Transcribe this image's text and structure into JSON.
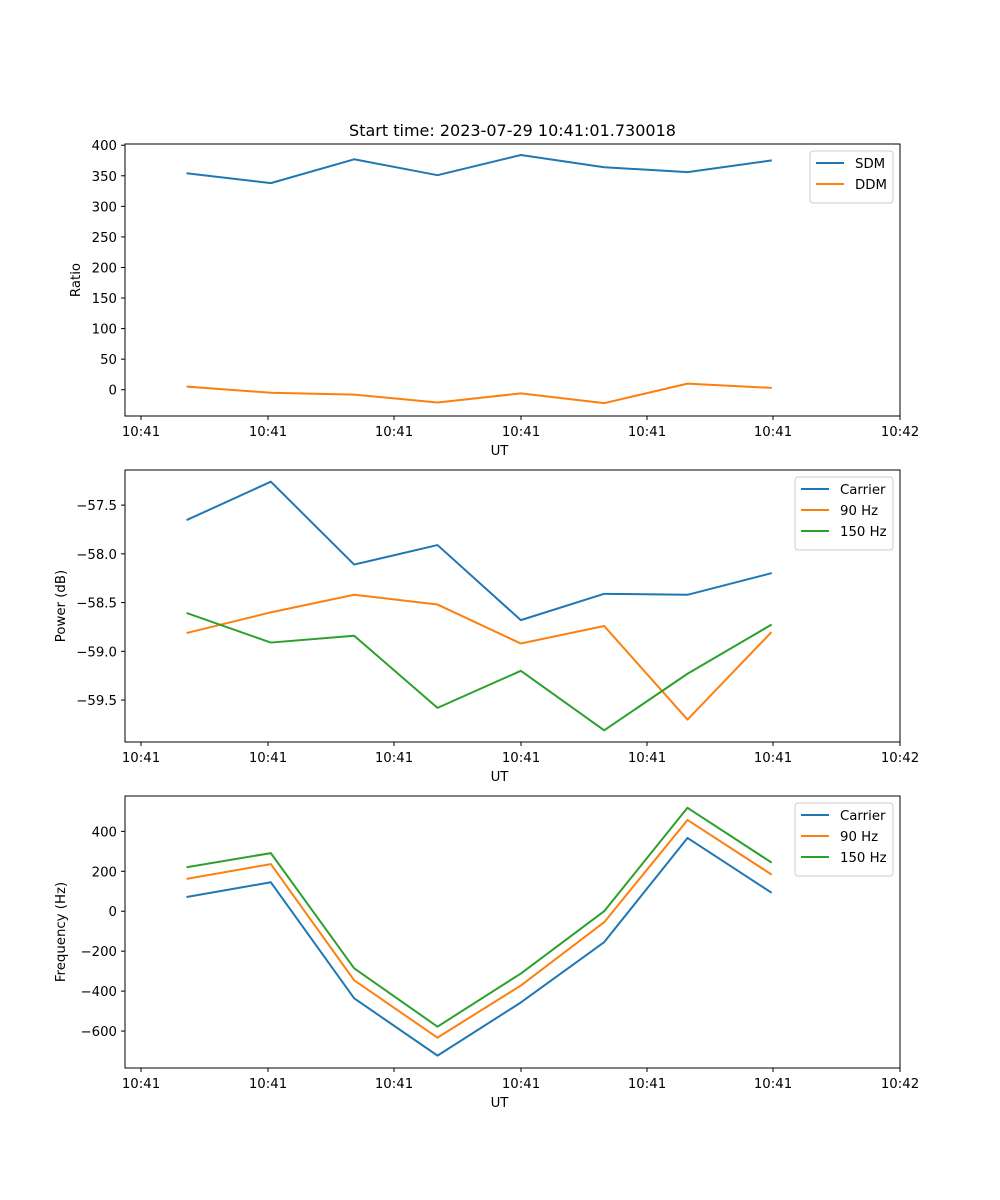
{
  "chart_data": [
    {
      "type": "line",
      "title": "Start time: 2023-07-29 10:41:01.730018",
      "xlabel": "UT",
      "ylabel": "Ratio",
      "xtick_labels": [
        "10:41",
        "10:41",
        "10:41",
        "10:41",
        "10:41",
        "10:41",
        "10:42"
      ],
      "xlim": [
        -0.75,
        8.55
      ],
      "x": [
        0,
        1,
        2,
        3,
        4,
        5,
        6,
        7
      ],
      "ylim": [
        -43,
        402
      ],
      "yticks": [
        0,
        50,
        100,
        150,
        200,
        250,
        300,
        350,
        400
      ],
      "ytick_labels": [
        "0",
        "50",
        "100",
        "150",
        "200",
        "250",
        "300",
        "350",
        "400"
      ],
      "legend_position": "top-right",
      "grid": false,
      "series": [
        {
          "name": "SDM",
          "color": "#1f77b4",
          "values": [
            354,
            338,
            377,
            351,
            384,
            364,
            356,
            375
          ]
        },
        {
          "name": "DDM",
          "color": "#ff7f0e",
          "values": [
            5,
            -5,
            -8,
            -21,
            -6,
            -22,
            10,
            3
          ]
        }
      ]
    },
    {
      "type": "line",
      "title": "",
      "xlabel": "UT",
      "ylabel": "Power (dB)",
      "xtick_labels": [
        "10:41",
        "10:41",
        "10:41",
        "10:41",
        "10:41",
        "10:41",
        "10:42"
      ],
      "xlim": [
        -0.75,
        8.55
      ],
      "x": [
        0,
        1,
        2,
        3,
        4,
        5,
        6,
        7
      ],
      "ylim": [
        -59.93,
        -57.14
      ],
      "yticks": [
        -59.5,
        -59.0,
        -58.5,
        -58.0,
        -57.5
      ],
      "ytick_labels": [
        "−59.5",
        "−59.0",
        "−58.5",
        "−58.0",
        "−57.5"
      ],
      "legend_position": "top-right",
      "grid": false,
      "series": [
        {
          "name": "Carrier",
          "color": "#1f77b4",
          "values": [
            -57.65,
            -57.26,
            -58.11,
            -57.91,
            -58.68,
            -58.41,
            -58.42,
            -58.2
          ]
        },
        {
          "name": "90 Hz",
          "color": "#ff7f0e",
          "values": [
            -58.81,
            -58.6,
            -58.42,
            -58.52,
            -58.92,
            -58.74,
            -59.7,
            -58.81
          ]
        },
        {
          "name": "150 Hz",
          "color": "#2ca02c",
          "values": [
            -58.61,
            -58.91,
            -58.84,
            -59.58,
            -59.2,
            -59.81,
            -59.23,
            -58.73
          ]
        }
      ]
    },
    {
      "type": "line",
      "title": "",
      "xlabel": "UT",
      "ylabel": "Frequency (Hz)",
      "xtick_labels": [
        "10:41",
        "10:41",
        "10:41",
        "10:41",
        "10:41",
        "10:41",
        "10:42"
      ],
      "xlim": [
        -0.75,
        8.55
      ],
      "x": [
        0,
        1,
        2,
        3,
        4,
        5,
        6,
        7
      ],
      "ylim": [
        -785,
        577
      ],
      "yticks": [
        -600,
        -400,
        -200,
        0,
        200,
        400
      ],
      "ytick_labels": [
        "−600",
        "−400",
        "−200",
        "0",
        "200",
        "400"
      ],
      "legend_position": "top-right",
      "grid": false,
      "series": [
        {
          "name": "Carrier",
          "color": "#1f77b4",
          "values": [
            72,
            145,
            -436,
            -723,
            -457,
            -155,
            367,
            95
          ]
        },
        {
          "name": "90 Hz",
          "color": "#ff7f0e",
          "values": [
            163,
            236,
            -346,
            -633,
            -372,
            -55,
            457,
            186
          ]
        },
        {
          "name": "150 Hz",
          "color": "#2ca02c",
          "values": [
            221,
            291,
            -286,
            -578,
            -312,
            0,
            518,
            246
          ]
        }
      ]
    }
  ]
}
